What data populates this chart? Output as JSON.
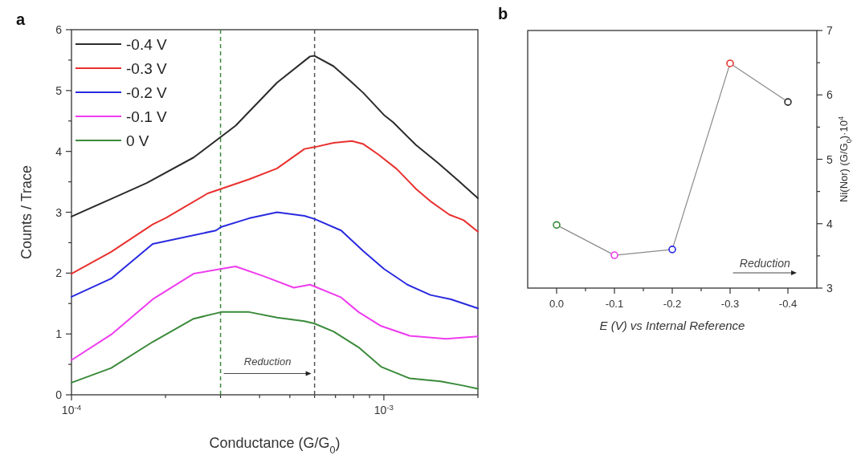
{
  "chart_data": [
    {
      "type": "line",
      "title": "a",
      "xlabel": "Conductance (G/G$_{0}$)",
      "ylabel": "Counts / Trace",
      "log": "x",
      "xlim": [
        0.0001,
        0.002
      ],
      "ylim": [
        0,
        6
      ],
      "xticks": [
        {
          "value": 0.0001,
          "label": "10$^{-4}$"
        },
        {
          "value": 0.0002,
          "label": null
        },
        {
          "value": 0.0003,
          "label": null
        },
        {
          "value": 0.0004,
          "label": null
        },
        {
          "value": 0.0005,
          "label": null
        },
        {
          "value": 0.0006,
          "label": null
        },
        {
          "value": 0.0007,
          "label": null
        },
        {
          "value": 0.0008,
          "label": null
        },
        {
          "value": 0.0009,
          "label": null
        },
        {
          "value": 0.001,
          "label": "10$^{-3}$"
        },
        {
          "value": 0.002,
          "label": null
        }
      ],
      "yticks": [
        0,
        {
          "value": 0.5,
          "label": null
        },
        1,
        {
          "value": 1.5,
          "label": null
        },
        2,
        {
          "value": 2.5,
          "label": null
        },
        3,
        {
          "value": 3.5,
          "label": null
        },
        4,
        {
          "value": 4.5,
          "label": null
        },
        5,
        {
          "value": 5.5,
          "label": null
        },
        6
      ],
      "legend": "top left",
      "grid": false,
      "line_style": "solid",
      "series": [
        {
          "name": "-0.4 V",
          "color": "#2b2b2b",
          "x": [
            0.0001,
            0.000134,
            0.000174,
            0.000246,
            0.000335,
            0.000455,
            0.00058,
            0.0006,
            0.00069,
            0.00078,
            0.00086,
            0.001,
            0.00107,
            0.00127,
            0.00149,
            0.00173,
            0.002
          ],
          "values": [
            2.93,
            3.22,
            3.48,
            3.9,
            4.42,
            5.13,
            5.56,
            5.57,
            5.4,
            5.16,
            4.96,
            4.6,
            4.48,
            4.1,
            3.81,
            3.52,
            3.23
          ]
        },
        {
          "name": "-0.3 V",
          "color": "#e8312f",
          "x": [
            0.0001,
            0.000134,
            0.000182,
            0.000201,
            0.000273,
            0.00037,
            0.000455,
            0.000557,
            0.0006,
            0.00069,
            0.00079,
            0.00086,
            0.00096,
            0.0011,
            0.00127,
            0.00141,
            0.00162,
            0.0018,
            0.002
          ],
          "values": [
            1.99,
            2.35,
            2.8,
            2.91,
            3.31,
            3.54,
            3.72,
            4.04,
            4.07,
            4.14,
            4.17,
            4.12,
            3.95,
            3.71,
            3.38,
            3.18,
            2.96,
            2.87,
            2.68
          ]
        },
        {
          "name": "-0.2 V",
          "color": "#2a2ae0",
          "x": [
            0.0001,
            0.000134,
            0.000182,
            0.00029,
            0.000302,
            0.00037,
            0.000455,
            0.000557,
            0.0006,
            0.00073,
            0.00086,
            0.001,
            0.00119,
            0.00141,
            0.00164,
            0.002
          ],
          "values": [
            1.61,
            1.91,
            2.48,
            2.7,
            2.76,
            2.9,
            3.0,
            2.94,
            2.89,
            2.7,
            2.36,
            2.07,
            1.81,
            1.64,
            1.57,
            1.42
          ]
        },
        {
          "name": "-0.1 V",
          "color": "#ee3cee",
          "x": [
            0.0001,
            0.000134,
            0.000182,
            0.000246,
            0.000335,
            0.000412,
            0.000515,
            0.00058,
            0.0006,
            0.00073,
            0.00083,
            0.00098,
            0.00121,
            0.00158,
            0.002
          ],
          "values": [
            0.57,
            0.99,
            1.57,
            1.99,
            2.11,
            1.95,
            1.76,
            1.81,
            1.78,
            1.6,
            1.36,
            1.13,
            0.97,
            0.92,
            0.96
          ]
        },
        {
          "name": "0 V",
          "color": "#3a8a3a",
          "x": [
            0.0001,
            0.000134,
            0.000182,
            0.000246,
            0.000302,
            0.00037,
            0.000455,
            0.000557,
            0.0006,
            0.00069,
            0.00083,
            0.00098,
            0.00121,
            0.00152,
            0.0018,
            0.002
          ],
          "values": [
            0.2,
            0.44,
            0.87,
            1.25,
            1.36,
            1.36,
            1.27,
            1.21,
            1.17,
            1.04,
            0.78,
            0.46,
            0.27,
            0.22,
            0.15,
            0.1
          ]
        }
      ],
      "ref_lines": [
        {
          "axis": "x",
          "value": 0.0003,
          "color": "#3a8a3a",
          "line_style": "dashed"
        },
        {
          "axis": "x",
          "value": 0.0006,
          "color": "#555555",
          "line_style": "dashed"
        }
      ],
      "annotations": [
        "Reduction"
      ]
    },
    {
      "type": "line",
      "title": "b",
      "xlabel": "E (V) vs Internal Reference",
      "y2label": "Ni(Nor) (G/G$_{0}$)·10$^{4}$",
      "xlim": [
        0.05,
        -0.45
      ],
      "x": [
        0.0,
        -0.1,
        -0.2,
        -0.3,
        -0.4
      ],
      "xticks": [
        {
          "value": 0.0,
          "label": "0.0"
        },
        {
          "value": -0.05,
          "label": null
        },
        -0.1,
        {
          "value": -0.15,
          "label": null
        },
        -0.2,
        {
          "value": -0.25,
          "label": null
        },
        -0.3,
        {
          "value": -0.35,
          "label": null
        },
        -0.4
      ],
      "y2lim": [
        3,
        7
      ],
      "y2ticks": [
        3,
        {
          "value": 3.5,
          "label": null
        },
        4,
        {
          "value": 4.5,
          "label": null
        },
        5,
        {
          "value": 5.5,
          "label": null
        },
        6,
        {
          "value": 6.5,
          "label": null
        },
        7
      ],
      "grid": false,
      "legend": false,
      "marker": "circle",
      "line_style": "solid",
      "series": [
        {
          "axis": "y2",
          "color": "#8a8a8a",
          "colors": [
            "#3a8a3a",
            "#ee3cee",
            "#2a2ae0",
            "#e8312f",
            "#2b2b2b"
          ],
          "values": [
            3.98,
            3.51,
            3.6,
            6.49,
            5.89
          ]
        }
      ],
      "annotations": [
        "Reduction"
      ]
    }
  ]
}
